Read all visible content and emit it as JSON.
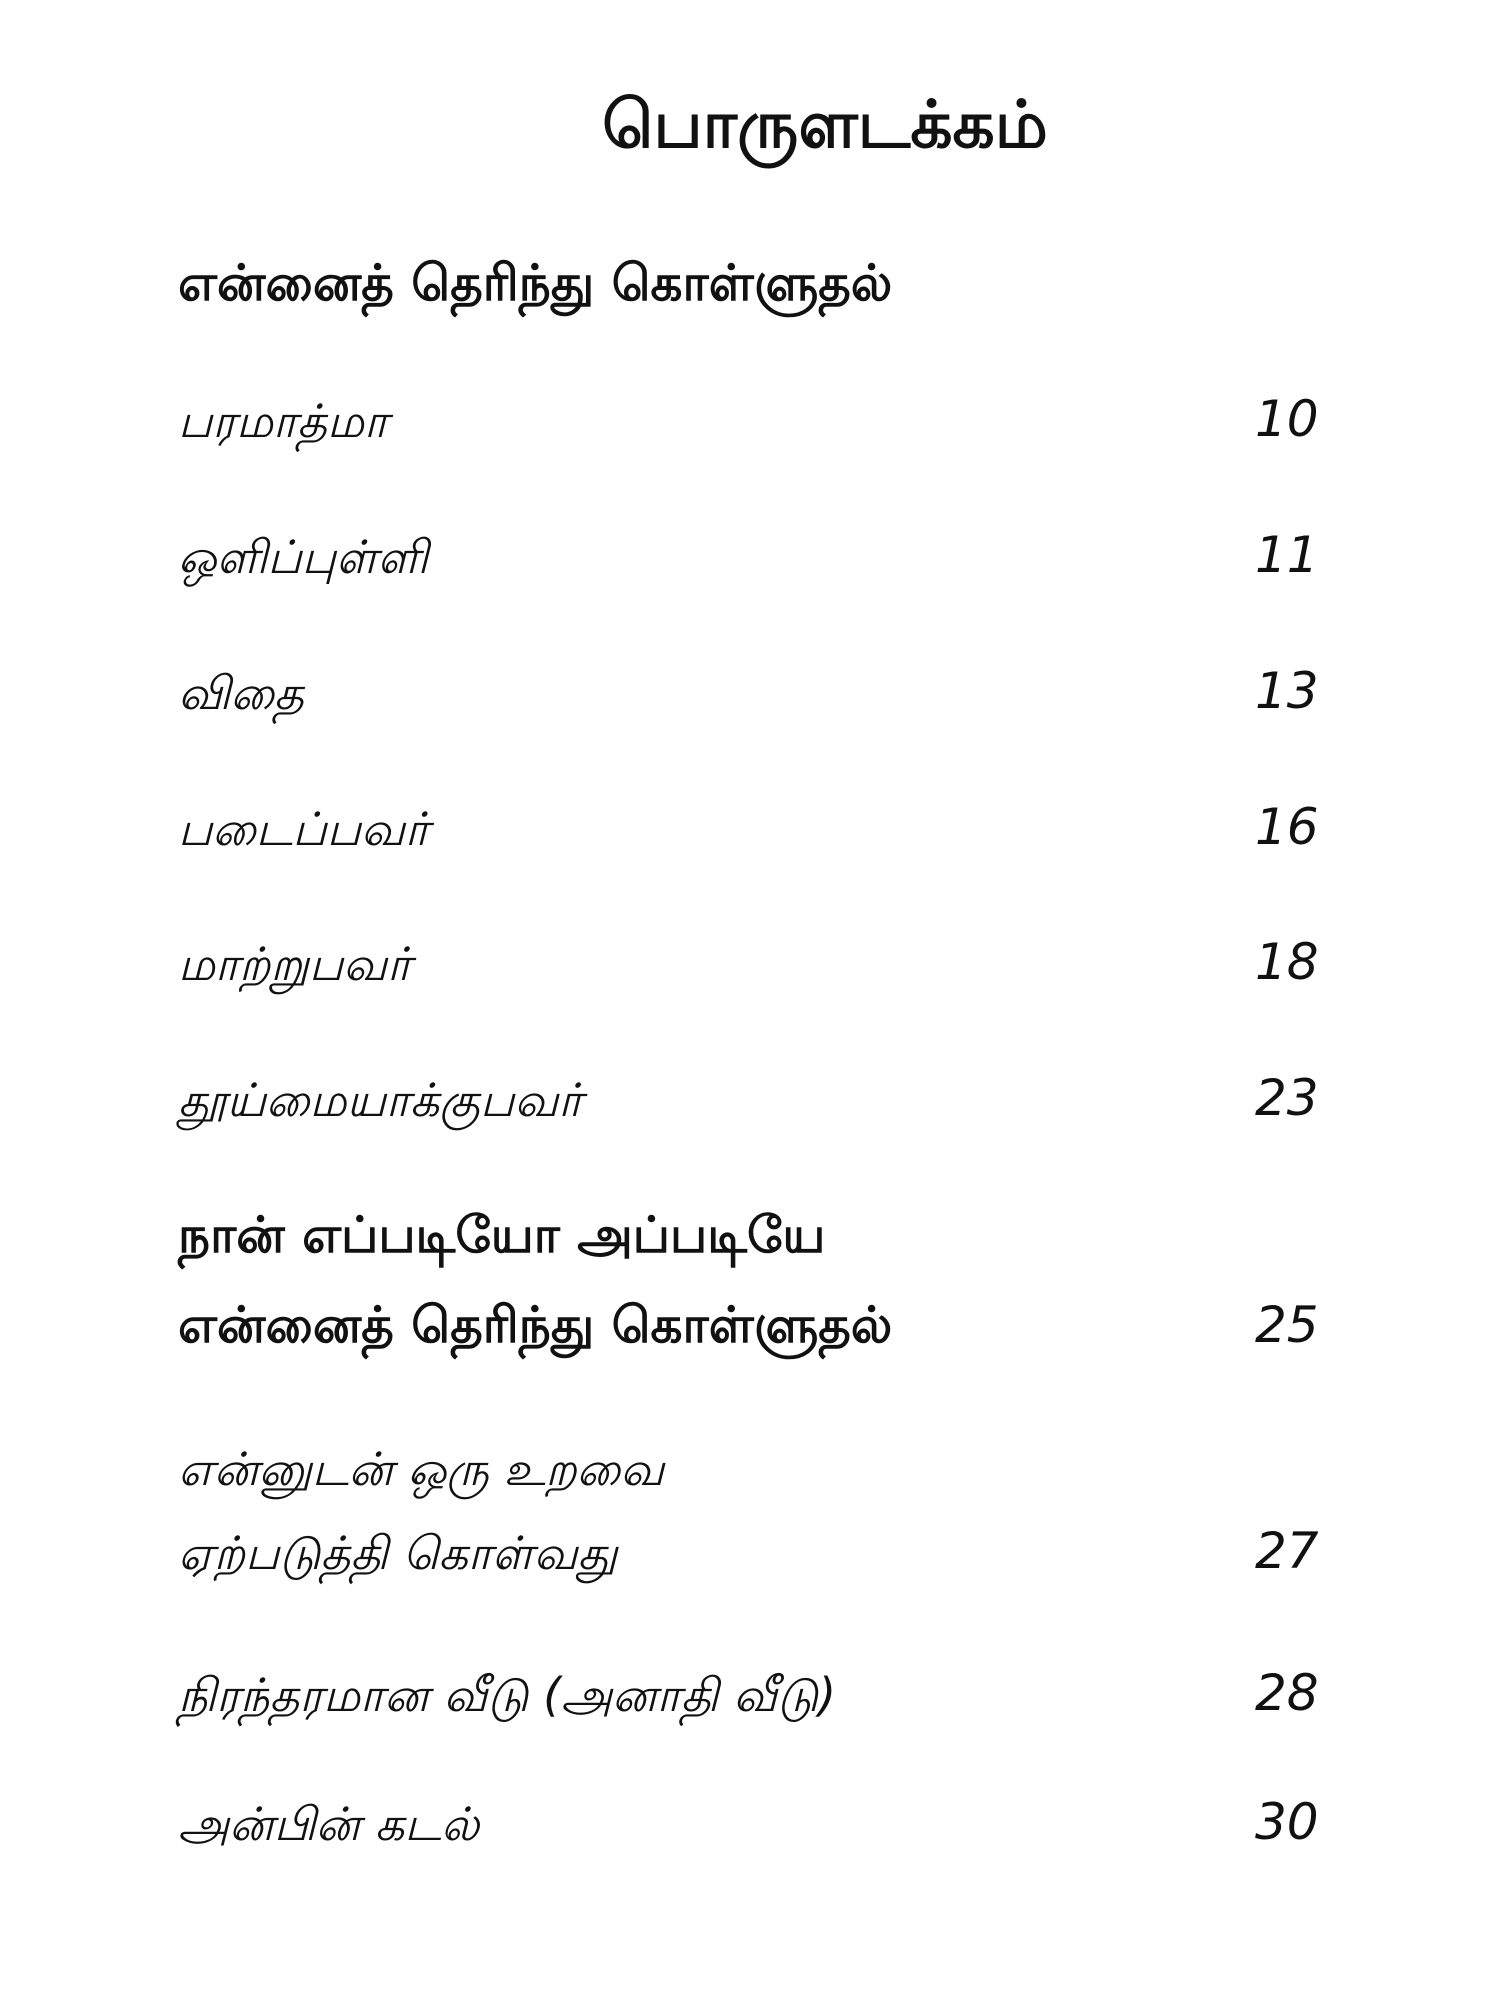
{
  "title": "பொருளடக்கம்",
  "sections": [
    {
      "heading": "என்னைத் தெரிந்து கொள்ளுதல்",
      "items": [
        {
          "label": "பரமாத்மா",
          "page": "10"
        },
        {
          "label": "ஒளிப்புள்ளி",
          "page": "11"
        },
        {
          "label": "விதை",
          "page": "13"
        },
        {
          "label": "படைப்பவர்",
          "page": "16"
        },
        {
          "label": "மாற்றுபவர்",
          "page": "18"
        },
        {
          "label": "தூய்மையாக்குபவர்",
          "page": "23"
        }
      ]
    },
    {
      "heading_line1": "நான் எப்படியோ அப்படியே",
      "heading_line2": "என்னைத் தெரிந்து கொள்ளுதல்",
      "page": "25",
      "items": [
        {
          "label_line1": "என்னுடன் ஒரு உறவை",
          "label_line2": "ஏற்படுத்தி கொள்வது",
          "page": "27"
        },
        {
          "label": "நிரந்தரமான வீடு (அனாதி வீடு)",
          "page": "28"
        },
        {
          "label": "அன்பின் கடல்",
          "page": "30"
        }
      ]
    }
  ]
}
